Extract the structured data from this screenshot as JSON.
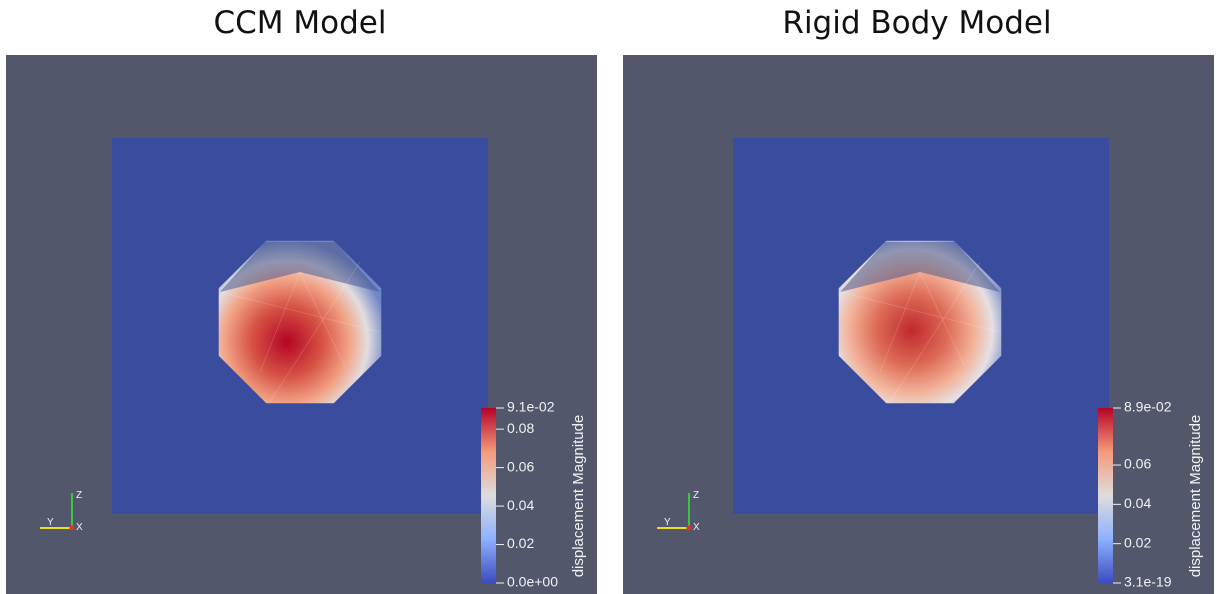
{
  "panels": [
    {
      "title": "CCM Model",
      "colorbar": {
        "label": "displacement Magnitude",
        "range": [
          0,
          0.091
        ],
        "ticks": [
          {
            "value": 0,
            "label": "0.0e+00"
          },
          0.02,
          0.04,
          0.06,
          0.08,
          {
            "value": 0.091,
            "label": "9.1e-02"
          }
        ]
      },
      "triad": {
        "y": "Y",
        "z": "Z",
        "x": "X"
      }
    },
    {
      "title": "Rigid Body Model",
      "colorbar": {
        "label": "displacement Magnitude",
        "range": [
          3.1e-19,
          0.089
        ],
        "ticks": [
          {
            "value": 3.1e-19,
            "label": "3.1e-19"
          },
          0.02,
          0.04,
          0.06,
          {
            "value": 0.089,
            "label": "8.9e-02"
          }
        ]
      },
      "triad": {
        "y": "Y",
        "z": "Z",
        "x": "X"
      }
    }
  ]
}
